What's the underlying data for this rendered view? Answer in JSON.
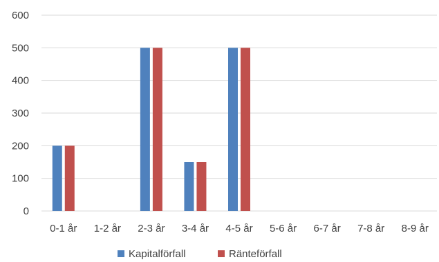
{
  "chart_data": {
    "type": "bar",
    "title": "",
    "xlabel": "",
    "ylabel": "",
    "categories": [
      "0-1 år",
      "1-2 år",
      "2-3 år",
      "3-4 år",
      "4-5 år",
      "5-6 år",
      "6-7 år",
      "7-8 år",
      "8-9 år"
    ],
    "series": [
      {
        "name": "Kapitalförfall",
        "color": "#4f81bd",
        "values": [
          200,
          0,
          500,
          150,
          500,
          0,
          0,
          0,
          0
        ]
      },
      {
        "name": "Ränteförfall",
        "color": "#c0504d",
        "values": [
          200,
          0,
          500,
          150,
          500,
          0,
          0,
          0,
          0
        ]
      }
    ],
    "ylim": [
      0,
      600
    ],
    "yticks": [
      "0",
      "100",
      "200",
      "300",
      "400",
      "500",
      "600"
    ],
    "grid": true,
    "legend_position": "bottom"
  }
}
